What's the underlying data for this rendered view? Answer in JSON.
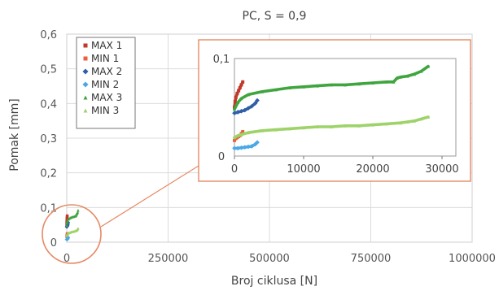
{
  "chart_data": {
    "type": "scatter",
    "title": "PC, S = 0,9",
    "xlabel": "Broj ciklusa [N]",
    "ylabel": "Pomak [mm]",
    "xlim": [
      0,
      1000000
    ],
    "ylim": [
      0,
      0.6
    ],
    "xticks": [
      "0",
      "250000",
      "500000",
      "750000",
      "1000000"
    ],
    "yticks": [
      "0",
      "0,1",
      "0,2",
      "0,3",
      "0,4",
      "0,5",
      "0,6"
    ],
    "grid": true,
    "legend": "top-left",
    "series": [
      {
        "name": "MAX 1",
        "color": "#c0392b",
        "marker": "square",
        "x": [
          0,
          100,
          200,
          400,
          600,
          800,
          1000,
          1200
        ],
        "y": [
          0.05,
          0.056,
          0.06,
          0.064,
          0.067,
          0.07,
          0.073,
          0.076
        ]
      },
      {
        "name": "MIN  1",
        "color": "#e9603e",
        "marker": "square",
        "x": [
          0,
          200,
          400,
          600,
          800,
          1000,
          1200
        ],
        "y": [
          0.016,
          0.018,
          0.019,
          0.02,
          0.021,
          0.023,
          0.025
        ]
      },
      {
        "name": "MAX 2",
        "color": "#2e5fa8",
        "marker": "diamond",
        "x": [
          0,
          500,
          1000,
          1500,
          2000,
          2500,
          3000,
          3300
        ],
        "y": [
          0.044,
          0.045,
          0.046,
          0.047,
          0.049,
          0.051,
          0.054,
          0.057
        ]
      },
      {
        "name": "MIN  2",
        "color": "#4aa8e8",
        "marker": "diamond",
        "x": [
          0,
          500,
          1000,
          1500,
          2000,
          2500,
          3000,
          3300
        ],
        "y": [
          0.008,
          0.008,
          0.0085,
          0.009,
          0.0095,
          0.01,
          0.012,
          0.014
        ]
      },
      {
        "name": "MAX 3",
        "color": "#3fa53f",
        "marker": "triangle",
        "x": [
          0,
          500,
          1000,
          2000,
          4000,
          6000,
          8000,
          10000,
          12000,
          14000,
          16000,
          18000,
          20000,
          22000,
          23000,
          23500,
          24000,
          25000,
          26000,
          27000,
          28000
        ],
        "y": [
          0.048,
          0.055,
          0.059,
          0.063,
          0.066,
          0.068,
          0.07,
          0.071,
          0.072,
          0.073,
          0.073,
          0.074,
          0.075,
          0.076,
          0.076,
          0.08,
          0.081,
          0.082,
          0.084,
          0.087,
          0.092
        ]
      },
      {
        "name": "MIN  3",
        "color": "#9ed36a",
        "marker": "triangle",
        "x": [
          0,
          500,
          1000,
          2000,
          4000,
          6000,
          8000,
          10000,
          12000,
          14000,
          16000,
          18000,
          20000,
          22000,
          24000,
          25000,
          26000,
          27000,
          28000
        ],
        "y": [
          0.019,
          0.021,
          0.022,
          0.024,
          0.026,
          0.027,
          0.028,
          0.029,
          0.03,
          0.03,
          0.031,
          0.031,
          0.032,
          0.033,
          0.034,
          0.035,
          0.036,
          0.038,
          0.04
        ]
      }
    ],
    "inset": {
      "xlim": [
        0,
        32000
      ],
      "ylim": [
        0,
        0.1
      ],
      "xticks": [
        "0",
        "10000",
        "20000",
        "30000"
      ],
      "yticks": [
        "0",
        "0,1"
      ]
    }
  }
}
